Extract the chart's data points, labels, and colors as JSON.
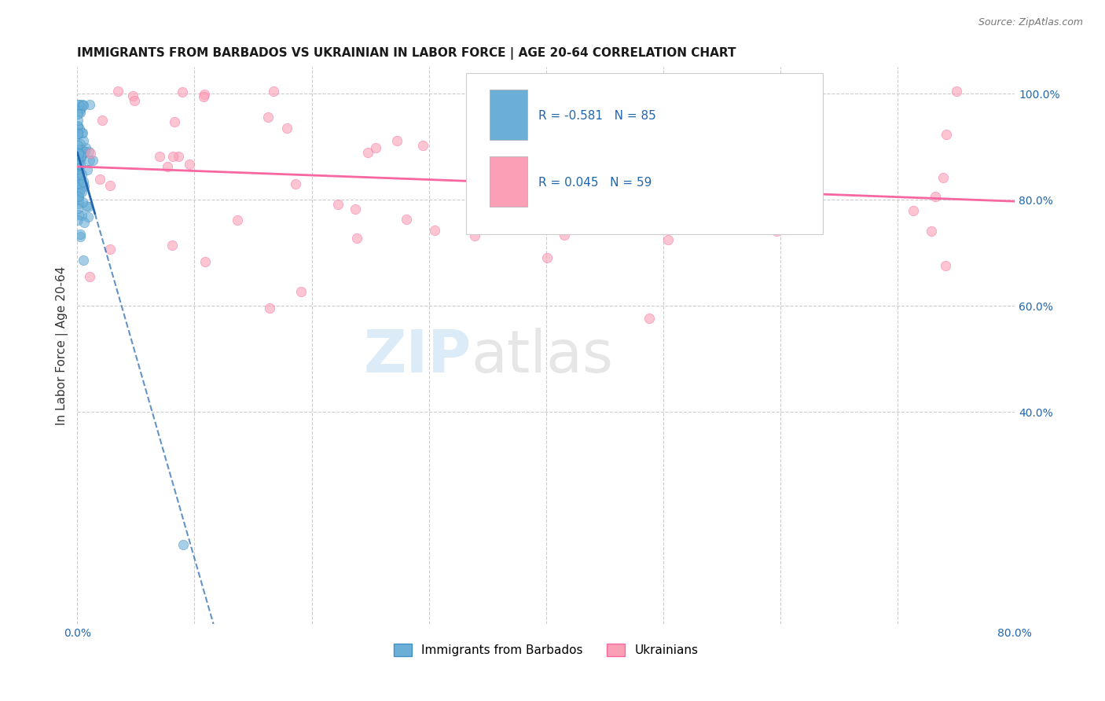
{
  "title": "IMMIGRANTS FROM BARBADOS VS UKRAINIAN IN LABOR FORCE | AGE 20-64 CORRELATION CHART",
  "source": "Source: ZipAtlas.com",
  "ylabel_left": "In Labor Force | Age 20-64",
  "xlim": [
    0.0,
    0.8
  ],
  "ylim": [
    0.0,
    1.05
  ],
  "xticks": [
    0.0,
    0.1,
    0.2,
    0.3,
    0.4,
    0.5,
    0.6,
    0.7,
    0.8
  ],
  "yticks_right": [
    0.4,
    0.6,
    0.8,
    1.0
  ],
  "ytick_right_labels": [
    "40.0%",
    "60.0%",
    "80.0%",
    "100.0%"
  ],
  "barbados_color": "#6baed6",
  "barbados_edge": "#4292c6",
  "ukrainian_color": "#fa9fb5",
  "ukrainian_edge": "#f768a1",
  "blue_line_color": "#2166ac",
  "pink_line_color": "#f768a1",
  "R_barbados": -0.581,
  "N_barbados": 85,
  "R_ukrainian": 0.045,
  "N_ukrainian": 59,
  "legend_label_barbados": "Immigrants from Barbados",
  "legend_label_ukrainian": "Ukrainians",
  "watermark_zip": "ZIP",
  "watermark_atlas": "atlas"
}
